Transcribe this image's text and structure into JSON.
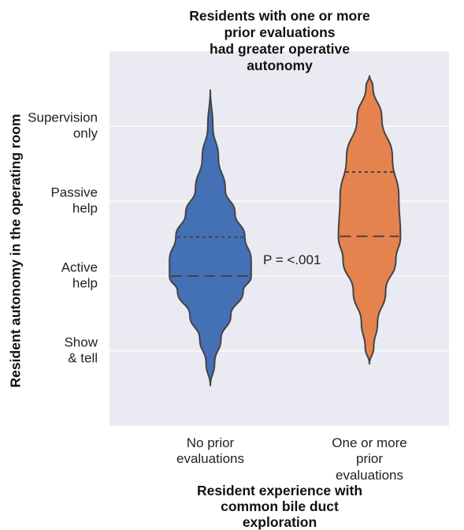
{
  "chart_data": {
    "type": "violin",
    "title": "Residents with one or more prior evaluations\nhad greater operative autonomy",
    "x_label": "Resident experience with\ncommon bile duct exploration",
    "y_label": "Resident autonomy in the operating room",
    "categories": [
      "No prior\nevaluations",
      "One or more\nprior evaluations"
    ],
    "ylim": [
      0,
      5
    ],
    "yticks": [
      {
        "value": 1,
        "label": "Show\n& tell"
      },
      {
        "value": 2,
        "label": "Active\nhelp"
      },
      {
        "value": 3,
        "label": "Passive\nhelp"
      },
      {
        "value": 4,
        "label": "Supervision\nonly"
      }
    ],
    "grid": true,
    "series": [
      {
        "color": "#4470b6",
        "density_y": [
          4.49,
          4.0,
          3.58,
          3.16,
          2.84,
          2.53,
          2.21,
          2.0,
          1.79,
          1.47,
          1.16,
          0.84,
          0.53
        ],
        "density": [
          0,
          0.06,
          0.19,
          0.35,
          0.58,
          0.81,
          0.96,
          0.96,
          0.77,
          0.48,
          0.25,
          0.1,
          0
        ],
        "median": 2.0,
        "q3": 2.52
      },
      {
        "color": "#e5834f",
        "density_y": [
          4.68,
          4.53,
          4.11,
          3.58,
          3.05,
          2.53,
          2.21,
          1.79,
          1.37,
          1.05,
          0.82
        ],
        "density": [
          0,
          0.08,
          0.29,
          0.54,
          0.69,
          0.73,
          0.62,
          0.38,
          0.19,
          0.1,
          0
        ],
        "median": 2.53,
        "q3": 3.39
      }
    ],
    "annotation": "P = <.001"
  }
}
